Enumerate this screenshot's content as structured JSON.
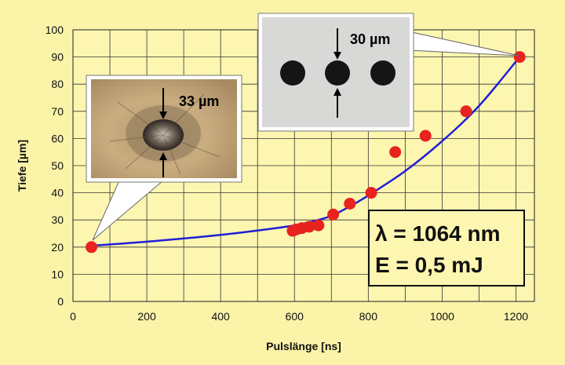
{
  "chart_data": {
    "type": "scatter",
    "title": "",
    "xlabel": "Pulslänge [ns]",
    "ylabel": "Tiefe [µm]",
    "xlim": [
      0,
      1250
    ],
    "ylim": [
      0,
      100
    ],
    "xticks": [
      0,
      200,
      400,
      600,
      800,
      1000,
      1200
    ],
    "yticks": [
      0,
      10,
      20,
      30,
      40,
      50,
      60,
      70,
      80,
      90,
      100
    ],
    "grid": true,
    "points": {
      "x": [
        50,
        595,
        605,
        620,
        640,
        665,
        705,
        750,
        808,
        873,
        955,
        1065,
        1210
      ],
      "y": [
        20,
        26,
        26.5,
        27,
        27.5,
        28,
        32,
        36,
        40,
        55,
        61,
        70,
        90
      ]
    },
    "fit_curve": {
      "x": [
        50,
        200,
        400,
        550,
        600,
        650,
        700,
        750,
        800,
        900,
        1000,
        1100,
        1210
      ],
      "y": [
        20.5,
        22,
        24.5,
        27,
        28,
        29.5,
        31.5,
        35,
        39,
        48,
        59,
        72,
        90
      ]
    },
    "colors": {
      "points": "#e8231f",
      "curve": "#1f1fd6",
      "grid": "#333333",
      "background": "#fbf3a8",
      "plot_bg": "#fdf6b0"
    },
    "annotations": {
      "wavelength": "λ = 1064 nm",
      "energy": "E = 0,5 mJ",
      "scale_left": "33 µm",
      "scale_right": "30 µm"
    }
  }
}
